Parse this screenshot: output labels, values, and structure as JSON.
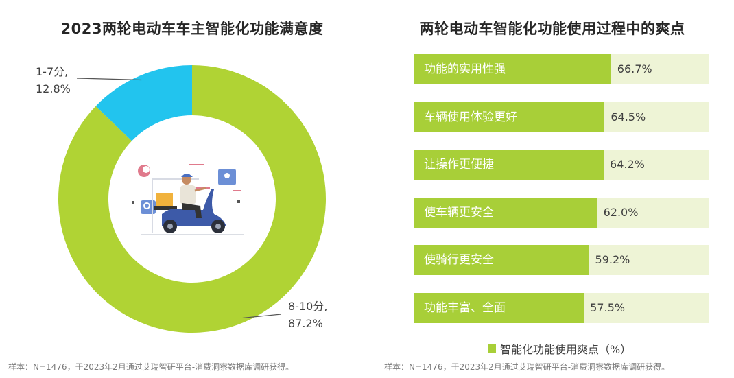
{
  "chart_data": [
    {
      "type": "pie",
      "title": "2023两轮电动车车主智能化功能满意度",
      "slices": [
        {
          "label": "8-10分,",
          "value": 87.2,
          "value_label": "87.2%",
          "color": "#b0d334"
        },
        {
          "label": "1-7分,",
          "value": 12.8,
          "value_label": "12.8%",
          "color": "#22c4ee"
        }
      ],
      "note": "样本：N=1476，于2023年2月通过艾瑞智研平台-消费洞察数据库调研获得。"
    },
    {
      "type": "bar",
      "orientation": "horizontal",
      "title": "两轮电动车智能化功能使用过程中的爽点",
      "xlim": [
        0,
        100
      ],
      "categories": [
        "功能的实用性强",
        "车辆使用体验更好",
        "让操作更便捷",
        "使车辆更安全",
        "使骑行更安全",
        "功能丰富、全面"
      ],
      "series": [
        {
          "name": "智能化功能使用爽点（%）",
          "values": [
            66.7,
            64.5,
            64.2,
            62.0,
            59.2,
            57.5
          ],
          "value_labels": [
            "66.7%",
            "64.5%",
            "64.2%",
            "62.0%",
            "59.2%",
            "57.5%"
          ],
          "color": "#a8cf38"
        }
      ],
      "legend": "bottom",
      "note": "样本：N=1476，于2023年2月通过艾瑞智研平台-消费洞察数据库调研获得。"
    }
  ]
}
